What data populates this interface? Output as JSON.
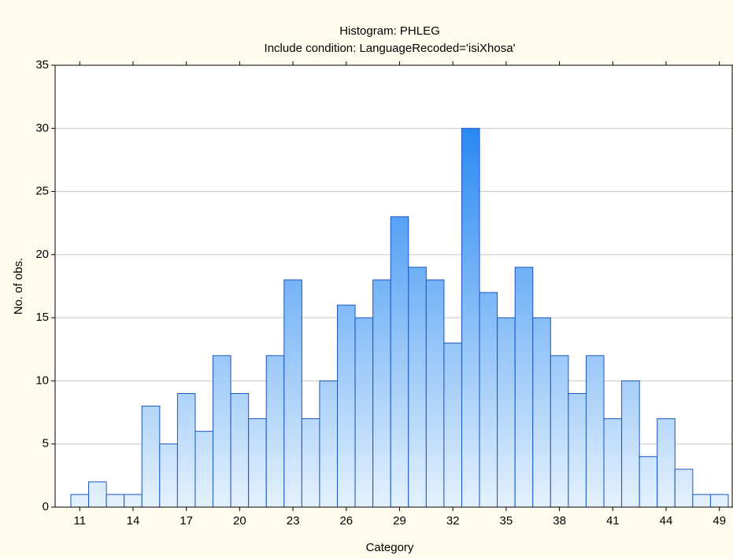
{
  "chart_data": {
    "type": "bar",
    "title": "Histogram: PHLEG",
    "subtitle": "Include condition: LanguageRecoded='isiXhosa'",
    "x_label": "Category",
    "y_label": "No. of obs.",
    "categories": [
      "11",
      null,
      null,
      "14",
      null,
      null,
      "17",
      null,
      null,
      "20",
      null,
      null,
      "23",
      null,
      null,
      "26",
      null,
      null,
      "29",
      null,
      null,
      "32",
      null,
      null,
      "35",
      null,
      null,
      "38",
      null,
      null,
      "41",
      null,
      null,
      "44",
      null,
      null,
      "49"
    ],
    "values": [
      1,
      2,
      1,
      1,
      8,
      5,
      9,
      6,
      12,
      9,
      7,
      12,
      18,
      7,
      10,
      16,
      15,
      18,
      23,
      19,
      18,
      13,
      30,
      17,
      15,
      19,
      15,
      12,
      9,
      12,
      7,
      10,
      4,
      7,
      3,
      1,
      1
    ],
    "color": "#1a56c4",
    "gradient": [
      "#0b78f0",
      "#e4f1fd"
    ],
    "ylim": [
      0,
      35
    ],
    "yticks": [
      0,
      5,
      10,
      15,
      20,
      25,
      30,
      35
    ],
    "grid": true
  }
}
